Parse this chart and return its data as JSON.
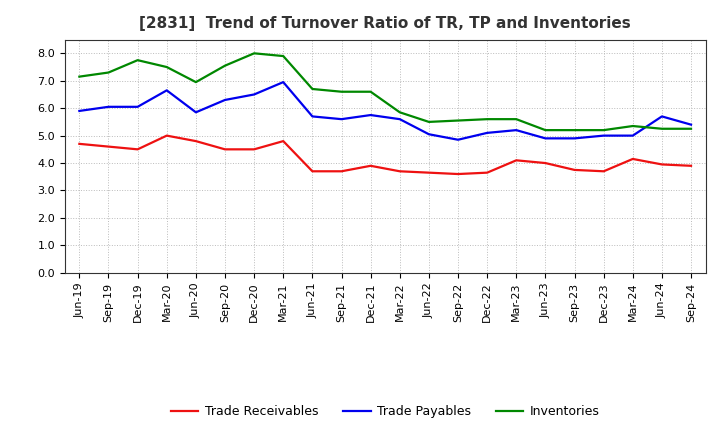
{
  "title": "[2831]  Trend of Turnover Ratio of TR, TP and Inventories",
  "x_labels": [
    "Jun-19",
    "Sep-19",
    "Dec-19",
    "Mar-20",
    "Jun-20",
    "Sep-20",
    "Dec-20",
    "Mar-21",
    "Jun-21",
    "Sep-21",
    "Dec-21",
    "Mar-22",
    "Jun-22",
    "Sep-22",
    "Dec-22",
    "Mar-23",
    "Jun-23",
    "Sep-23",
    "Dec-23",
    "Mar-24",
    "Jun-24",
    "Sep-24"
  ],
  "trade_receivables": [
    4.7,
    4.6,
    4.5,
    5.0,
    4.8,
    4.5,
    4.5,
    4.8,
    3.7,
    3.7,
    3.9,
    3.7,
    3.65,
    3.6,
    3.65,
    4.1,
    4.0,
    3.75,
    3.7,
    4.15,
    3.95,
    3.9
  ],
  "trade_payables": [
    5.9,
    6.05,
    6.05,
    6.65,
    5.85,
    6.3,
    6.5,
    6.95,
    5.7,
    5.6,
    5.75,
    5.6,
    5.05,
    4.85,
    5.1,
    5.2,
    4.9,
    4.9,
    5.0,
    5.0,
    5.7,
    5.4
  ],
  "inventories": [
    7.15,
    7.3,
    7.75,
    7.5,
    6.95,
    7.55,
    8.0,
    7.9,
    6.7,
    6.6,
    6.6,
    5.85,
    5.5,
    5.55,
    5.6,
    5.6,
    5.2,
    5.2,
    5.2,
    5.35,
    5.25,
    5.25
  ],
  "tr_color": "#ee1111",
  "tp_color": "#0000ee",
  "inv_color": "#008800",
  "legend_labels": [
    "Trade Receivables",
    "Trade Payables",
    "Inventories"
  ],
  "ylim": [
    0.0,
    8.5
  ],
  "yticks": [
    0.0,
    1.0,
    2.0,
    3.0,
    4.0,
    5.0,
    6.0,
    7.0,
    8.0
  ],
  "background_color": "#ffffff",
  "grid_color": "#bbbbbb",
  "line_width": 1.6,
  "title_fontsize": 11,
  "tick_fontsize": 8,
  "legend_fontsize": 9
}
